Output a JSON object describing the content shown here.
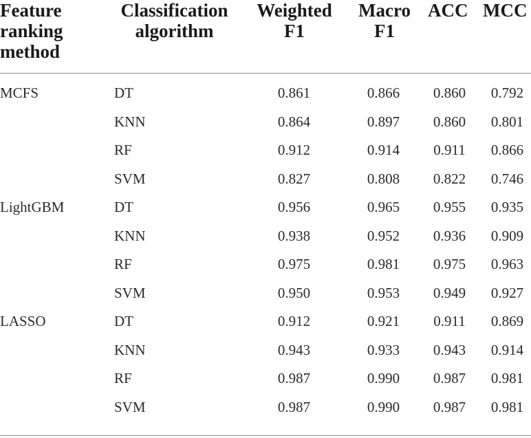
{
  "header": {
    "col1": [
      "Feature",
      "ranking",
      "method"
    ],
    "col2": [
      "Classification",
      "algorithm"
    ],
    "col3": [
      "Weighted",
      "F1"
    ],
    "col4": [
      "Macro",
      "F1"
    ],
    "col5": [
      "ACC"
    ],
    "col6": [
      "MCC"
    ]
  },
  "rows": [
    {
      "method": "MCFS",
      "algo": "DT",
      "v": [
        "0.861",
        "0.866",
        "0.860",
        "0.792"
      ]
    },
    {
      "method": "",
      "algo": "KNN",
      "v": [
        "0.864",
        "0.897",
        "0.860",
        "0.801"
      ]
    },
    {
      "method": "",
      "algo": "RF",
      "v": [
        "0.912",
        "0.914",
        "0.911",
        "0.866"
      ]
    },
    {
      "method": "",
      "algo": "SVM",
      "v": [
        "0.827",
        "0.808",
        "0.822",
        "0.746"
      ]
    },
    {
      "method": "LightGBM",
      "algo": "DT",
      "v": [
        "0.956",
        "0.965",
        "0.955",
        "0.935"
      ]
    },
    {
      "method": "",
      "algo": "KNN",
      "v": [
        "0.938",
        "0.952",
        "0.936",
        "0.909"
      ]
    },
    {
      "method": "",
      "algo": "RF",
      "v": [
        "0.975",
        "0.981",
        "0.975",
        "0.963"
      ]
    },
    {
      "method": "",
      "algo": "SVM",
      "v": [
        "0.950",
        "0.953",
        "0.949",
        "0.927"
      ]
    },
    {
      "method": "LASSO",
      "algo": "DT",
      "v": [
        "0.912",
        "0.921",
        "0.911",
        "0.869"
      ]
    },
    {
      "method": "",
      "algo": "KNN",
      "v": [
        "0.943",
        "0.933",
        "0.943",
        "0.914"
      ]
    },
    {
      "method": "",
      "algo": "RF",
      "v": [
        "0.987",
        "0.990",
        "0.987",
        "0.981"
      ]
    },
    {
      "method": "",
      "algo": "SVM",
      "v": [
        "0.987",
        "0.990",
        "0.987",
        "0.981"
      ]
    }
  ]
}
